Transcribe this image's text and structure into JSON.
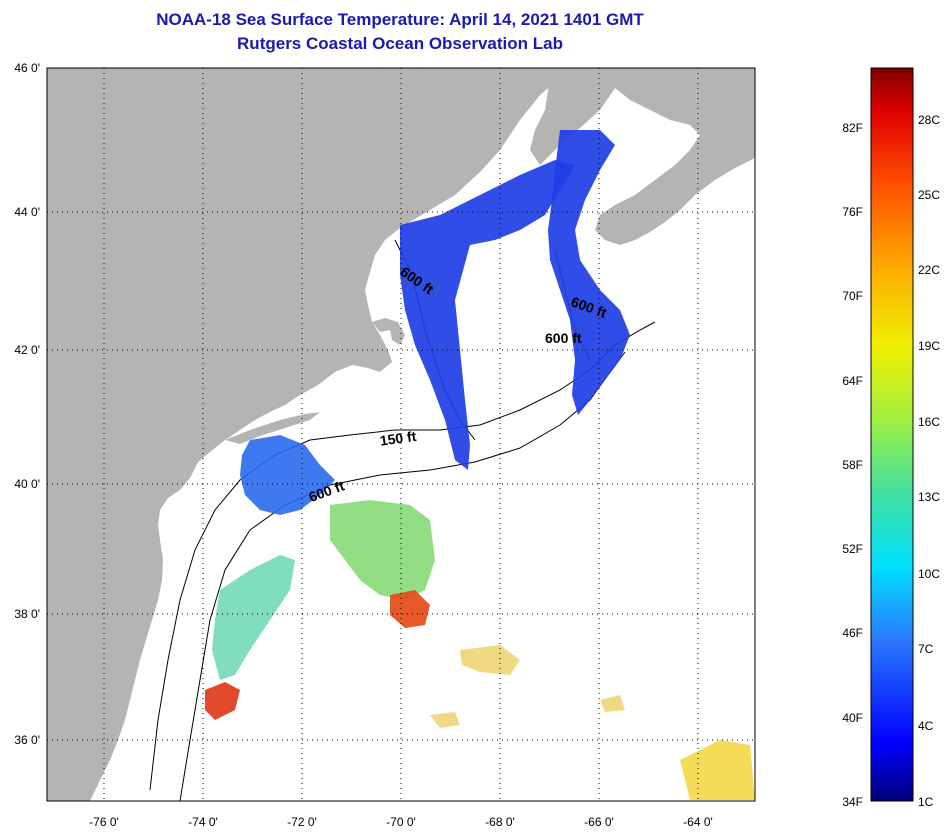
{
  "header": {
    "title": "NOAA-18 Sea Surface Temperature:  April 14, 2021 1401 GMT",
    "subtitle": "Rutgers Coastal Ocean Observation Lab"
  },
  "map": {
    "lat_labels": [
      "46 0'",
      "44 0'",
      "42 0'",
      "40 0'",
      "38 0'",
      "36 0'"
    ],
    "lon_labels": [
      "-76 0'",
      "-74 0'",
      "-72 0'",
      "-70 0'",
      "-68 0'",
      "-66 0'",
      "-64 0'"
    ],
    "contour_labels": [
      "600 ft",
      "600 ft",
      "600 ft",
      "150 ft",
      "600 ft"
    ],
    "colors": {
      "land": "#b4b4b4",
      "water": "#ffffff",
      "cold": "#1e3ee6",
      "warm": "#e6501e"
    }
  },
  "colorbar": {
    "fahrenheit": [
      "82F",
      "76F",
      "70F",
      "64F",
      "58F",
      "52F",
      "46F",
      "40F",
      "34F"
    ],
    "celsius": [
      "28C",
      "25C",
      "22C",
      "19C",
      "16C",
      "13C",
      "10C",
      "7C",
      "4C",
      "1C"
    ],
    "range_f": [
      34,
      88
    ],
    "range_c": [
      1,
      31
    ]
  }
}
